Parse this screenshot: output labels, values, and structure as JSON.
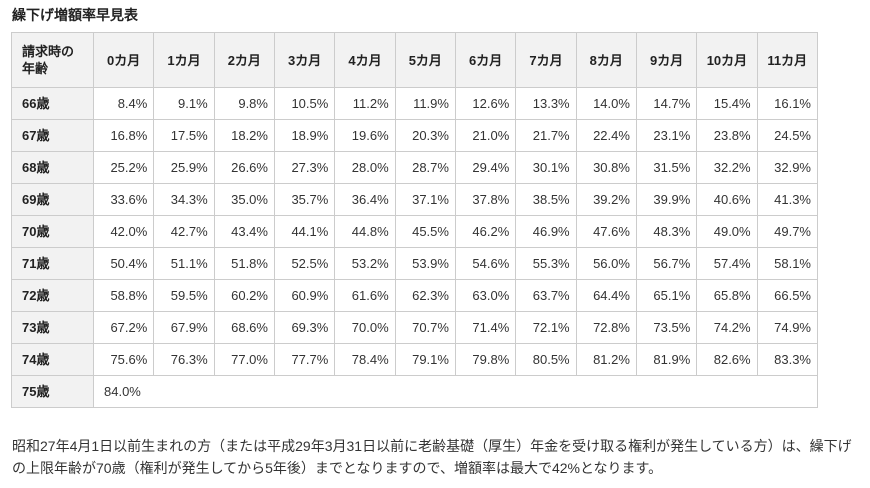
{
  "title": "繰下げ増額率早見表",
  "table": {
    "corner_header": "請求時の年齢",
    "month_headers": [
      "0カ月",
      "1カ月",
      "2カ月",
      "3カ月",
      "4カ月",
      "5カ月",
      "6カ月",
      "7カ月",
      "8カ月",
      "9カ月",
      "10カ月",
      "11カ月"
    ],
    "rows": [
      {
        "age": "66歳",
        "values": [
          "8.4%",
          "9.1%",
          "9.8%",
          "10.5%",
          "11.2%",
          "11.9%",
          "12.6%",
          "13.3%",
          "14.0%",
          "14.7%",
          "15.4%",
          "16.1%"
        ]
      },
      {
        "age": "67歳",
        "values": [
          "16.8%",
          "17.5%",
          "18.2%",
          "18.9%",
          "19.6%",
          "20.3%",
          "21.0%",
          "21.7%",
          "22.4%",
          "23.1%",
          "23.8%",
          "24.5%"
        ]
      },
      {
        "age": "68歳",
        "values": [
          "25.2%",
          "25.9%",
          "26.6%",
          "27.3%",
          "28.0%",
          "28.7%",
          "29.4%",
          "30.1%",
          "30.8%",
          "31.5%",
          "32.2%",
          "32.9%"
        ]
      },
      {
        "age": "69歳",
        "values": [
          "33.6%",
          "34.3%",
          "35.0%",
          "35.7%",
          "36.4%",
          "37.1%",
          "37.8%",
          "38.5%",
          "39.2%",
          "39.9%",
          "40.6%",
          "41.3%"
        ]
      },
      {
        "age": "70歳",
        "values": [
          "42.0%",
          "42.7%",
          "43.4%",
          "44.1%",
          "44.8%",
          "45.5%",
          "46.2%",
          "46.9%",
          "47.6%",
          "48.3%",
          "49.0%",
          "49.7%"
        ]
      },
      {
        "age": "71歳",
        "values": [
          "50.4%",
          "51.1%",
          "51.8%",
          "52.5%",
          "53.2%",
          "53.9%",
          "54.6%",
          "55.3%",
          "56.0%",
          "56.7%",
          "57.4%",
          "58.1%"
        ]
      },
      {
        "age": "72歳",
        "values": [
          "58.8%",
          "59.5%",
          "60.2%",
          "60.9%",
          "61.6%",
          "62.3%",
          "63.0%",
          "63.7%",
          "64.4%",
          "65.1%",
          "65.8%",
          "66.5%"
        ]
      },
      {
        "age": "73歳",
        "values": [
          "67.2%",
          "67.9%",
          "68.6%",
          "69.3%",
          "70.0%",
          "70.7%",
          "71.4%",
          "72.1%",
          "72.8%",
          "73.5%",
          "74.2%",
          "74.9%"
        ]
      },
      {
        "age": "74歳",
        "values": [
          "75.6%",
          "76.3%",
          "77.0%",
          "77.7%",
          "78.4%",
          "79.1%",
          "79.8%",
          "80.5%",
          "81.2%",
          "81.9%",
          "82.6%",
          "83.3%"
        ]
      },
      {
        "age": "75歳",
        "values": [
          "84.0%"
        ]
      }
    ]
  },
  "note": "昭和27年4月1日以前生まれの方（または平成29年3月31日以前に老齢基礎（厚生）年金を受け取る権利が発生している方）は、繰下げの上限年齢が70歳（権利が発生してから5年後）までとなりますので、増額率は最大で42%となります。",
  "colors": {
    "header_bg": "#f2f2f2",
    "border": "#cccccc",
    "text": "#333333",
    "heading_text": "#222222"
  }
}
